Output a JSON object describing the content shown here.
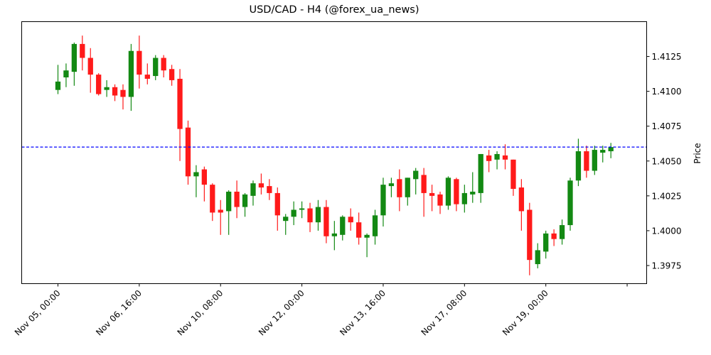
{
  "title": "USD/CAD - H4 (@forex_ua_news)",
  "colors": {
    "up": "#138913",
    "down": "#ff1a1a",
    "reference_line": "#0000ff",
    "axes": "#000000"
  },
  "chart_data": {
    "type": "candlestick",
    "title": "USD/CAD - H4 (@forex_ua_news)",
    "xlabel": "",
    "ylabel": "Price",
    "y_axis_position": "right",
    "ylim": [
      1.3962,
      1.415
    ],
    "xlim": [
      -4.46,
      72.4
    ],
    "grid": false,
    "legend": null,
    "yticks": [
      1.3975,
      1.4,
      1.4025,
      1.405,
      1.4075,
      1.41,
      1.4125
    ],
    "ytick_labels": [
      "1.3975",
      "1.4000",
      "1.4025",
      "1.4050",
      "1.4075",
      "1.4100",
      "1.4125"
    ],
    "xticks": [
      0,
      10,
      20,
      30,
      40,
      50,
      60,
      70
    ],
    "xtick_labels": [
      "Nov 05, 00:00",
      "Nov 06, 16:00",
      "Nov 10, 08:00",
      "Nov 12, 00:00",
      "Nov 13, 16:00",
      "Nov 17, 08:00",
      "Nov 19, 00:00",
      ""
    ],
    "reference_line": {
      "value": 1.406,
      "style": "dashed",
      "color": "#0000ff"
    },
    "candles": [
      {
        "o": 1.4101,
        "h": 1.4119,
        "l": 1.4098,
        "c": 1.4107
      },
      {
        "o": 1.411,
        "h": 1.412,
        "l": 1.4103,
        "c": 1.4115
      },
      {
        "o": 1.4114,
        "h": 1.4135,
        "l": 1.4104,
        "c": 1.4134
      },
      {
        "o": 1.4134,
        "h": 1.414,
        "l": 1.4115,
        "c": 1.4124
      },
      {
        "o": 1.4124,
        "h": 1.4131,
        "l": 1.4099,
        "c": 1.4112
      },
      {
        "o": 1.4112,
        "h": 1.4113,
        "l": 1.4097,
        "c": 1.4098
      },
      {
        "o": 1.4101,
        "h": 1.4108,
        "l": 1.4096,
        "c": 1.4103
      },
      {
        "o": 1.4103,
        "h": 1.4105,
        "l": 1.4093,
        "c": 1.4097
      },
      {
        "o": 1.4101,
        "h": 1.4105,
        "l": 1.4087,
        "c": 1.4096
      },
      {
        "o": 1.4096,
        "h": 1.4134,
        "l": 1.4086,
        "c": 1.4129
      },
      {
        "o": 1.4129,
        "h": 1.414,
        "l": 1.4102,
        "c": 1.4112
      },
      {
        "o": 1.4112,
        "h": 1.412,
        "l": 1.4105,
        "c": 1.4109
      },
      {
        "o": 1.4111,
        "h": 1.4126,
        "l": 1.4108,
        "c": 1.4124
      },
      {
        "o": 1.4124,
        "h": 1.4126,
        "l": 1.411,
        "c": 1.4115
      },
      {
        "o": 1.4116,
        "h": 1.4119,
        "l": 1.4104,
        "c": 1.4108
      },
      {
        "o": 1.4109,
        "h": 1.4116,
        "l": 1.405,
        "c": 1.4073
      },
      {
        "o": 1.4074,
        "h": 1.4079,
        "l": 1.4033,
        "c": 1.4039
      },
      {
        "o": 1.4039,
        "h": 1.4047,
        "l": 1.4024,
        "c": 1.4042
      },
      {
        "o": 1.4044,
        "h": 1.4046,
        "l": 1.4021,
        "c": 1.4033
      },
      {
        "o": 1.4033,
        "h": 1.4034,
        "l": 1.4007,
        "c": 1.4013
      },
      {
        "o": 1.4015,
        "h": 1.4022,
        "l": 1.3997,
        "c": 1.4013
      },
      {
        "o": 1.4014,
        "h": 1.4029,
        "l": 1.3997,
        "c": 1.4028
      },
      {
        "o": 1.4028,
        "h": 1.4036,
        "l": 1.4009,
        "c": 1.4017
      },
      {
        "o": 1.4017,
        "h": 1.4027,
        "l": 1.401,
        "c": 1.4026
      },
      {
        "o": 1.4025,
        "h": 1.4036,
        "l": 1.4018,
        "c": 1.4034
      },
      {
        "o": 1.4034,
        "h": 1.4041,
        "l": 1.4026,
        "c": 1.4031
      },
      {
        "o": 1.4032,
        "h": 1.4037,
        "l": 1.4022,
        "c": 1.4027
      },
      {
        "o": 1.4027,
        "h": 1.4031,
        "l": 1.4,
        "c": 1.4011
      },
      {
        "o": 1.4007,
        "h": 1.4012,
        "l": 1.3997,
        "c": 1.401
      },
      {
        "o": 1.401,
        "h": 1.4021,
        "l": 1.4004,
        "c": 1.4015
      },
      {
        "o": 1.4015,
        "h": 1.4021,
        "l": 1.4009,
        "c": 1.4016
      },
      {
        "o": 1.4016,
        "h": 1.402,
        "l": 1.3999,
        "c": 1.4006
      },
      {
        "o": 1.4006,
        "h": 1.4022,
        "l": 1.4,
        "c": 1.4017
      },
      {
        "o": 1.4017,
        "h": 1.4022,
        "l": 1.3991,
        "c": 1.3996
      },
      {
        "o": 1.3996,
        "h": 1.4007,
        "l": 1.3986,
        "c": 1.3998
      },
      {
        "o": 1.3997,
        "h": 1.4011,
        "l": 1.3993,
        "c": 1.401
      },
      {
        "o": 1.401,
        "h": 1.4016,
        "l": 1.4,
        "c": 1.4006
      },
      {
        "o": 1.4006,
        "h": 1.4013,
        "l": 1.399,
        "c": 1.3995
      },
      {
        "o": 1.3995,
        "h": 1.3998,
        "l": 1.3981,
        "c": 1.3997
      },
      {
        "o": 1.3996,
        "h": 1.4015,
        "l": 1.399,
        "c": 1.4011
      },
      {
        "o": 1.4011,
        "h": 1.4038,
        "l": 1.4003,
        "c": 1.4033
      },
      {
        "o": 1.4032,
        "h": 1.4038,
        "l": 1.4024,
        "c": 1.4034
      },
      {
        "o": 1.4037,
        "h": 1.4044,
        "l": 1.4014,
        "c": 1.4024
      },
      {
        "o": 1.4024,
        "h": 1.4038,
        "l": 1.4018,
        "c": 1.4038
      },
      {
        "o": 1.4037,
        "h": 1.4045,
        "l": 1.4026,
        "c": 1.4043
      },
      {
        "o": 1.404,
        "h": 1.4045,
        "l": 1.401,
        "c": 1.4027
      },
      {
        "o": 1.4027,
        "h": 1.4033,
        "l": 1.4014,
        "c": 1.4025
      },
      {
        "o": 1.4026,
        "h": 1.4028,
        "l": 1.4012,
        "c": 1.4018
      },
      {
        "o": 1.4018,
        "h": 1.4039,
        "l": 1.4015,
        "c": 1.4038
      },
      {
        "o": 1.4037,
        "h": 1.4038,
        "l": 1.4014,
        "c": 1.4019
      },
      {
        "o": 1.4019,
        "h": 1.4033,
        "l": 1.4013,
        "c": 1.4027
      },
      {
        "o": 1.4026,
        "h": 1.4042,
        "l": 1.402,
        "c": 1.4028
      },
      {
        "o": 1.4027,
        "h": 1.4055,
        "l": 1.402,
        "c": 1.4055
      },
      {
        "o": 1.4054,
        "h": 1.4058,
        "l": 1.4042,
        "c": 1.405
      },
      {
        "o": 1.4051,
        "h": 1.4057,
        "l": 1.4044,
        "c": 1.4055
      },
      {
        "o": 1.4054,
        "h": 1.4062,
        "l": 1.4044,
        "c": 1.4051
      },
      {
        "o": 1.4051,
        "h": 1.4051,
        "l": 1.4025,
        "c": 1.403
      },
      {
        "o": 1.4031,
        "h": 1.4037,
        "l": 1.4,
        "c": 1.4014
      },
      {
        "o": 1.4015,
        "h": 1.402,
        "l": 1.3968,
        "c": 1.3979
      },
      {
        "o": 1.3976,
        "h": 1.3991,
        "l": 1.3973,
        "c": 1.3986
      },
      {
        "o": 1.3985,
        "h": 1.4,
        "l": 1.398,
        "c": 1.3998
      },
      {
        "o": 1.3998,
        "h": 1.4001,
        "l": 1.3989,
        "c": 1.3994
      },
      {
        "o": 1.3994,
        "h": 1.4008,
        "l": 1.399,
        "c": 1.4004
      },
      {
        "o": 1.4004,
        "h": 1.4038,
        "l": 1.4,
        "c": 1.4036
      },
      {
        "o": 1.4036,
        "h": 1.4066,
        "l": 1.4032,
        "c": 1.4057
      },
      {
        "o": 1.4057,
        "h": 1.4061,
        "l": 1.4038,
        "c": 1.4043
      },
      {
        "o": 1.4043,
        "h": 1.4061,
        "l": 1.404,
        "c": 1.4058
      },
      {
        "o": 1.4056,
        "h": 1.4061,
        "l": 1.4049,
        "c": 1.4058
      },
      {
        "o": 1.4057,
        "h": 1.4063,
        "l": 1.4052,
        "c": 1.406
      }
    ]
  }
}
